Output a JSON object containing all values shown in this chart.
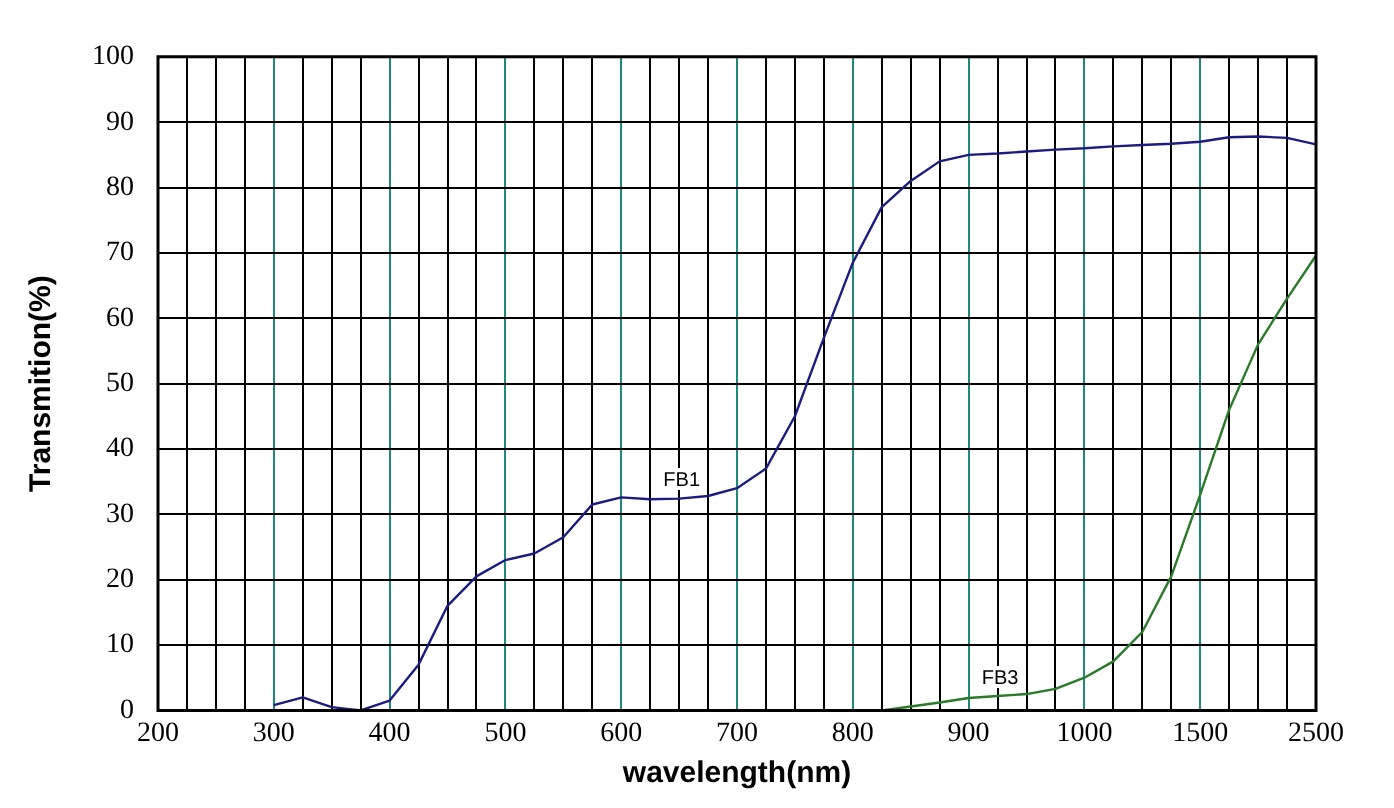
{
  "chart_data": {
    "type": "line",
    "xlabel": "wavelength(nm)",
    "ylabel": "Transmition(%)",
    "categories": [
      "200",
      null,
      null,
      null,
      "300",
      null,
      null,
      null,
      "400",
      null,
      null,
      null,
      "500",
      null,
      null,
      null,
      "600",
      null,
      null,
      null,
      "700",
      null,
      null,
      null,
      "800",
      null,
      null,
      null,
      "900",
      null,
      null,
      null,
      "1000",
      null,
      null,
      null,
      "1500",
      null,
      null,
      null,
      "2500"
    ],
    "ylim": [
      0,
      100
    ],
    "yticks": [
      0,
      10,
      20,
      30,
      40,
      50,
      60,
      70,
      80,
      90,
      100
    ],
    "grid": true,
    "marker": "none",
    "line_style": "solid",
    "series": [
      {
        "name": "FB1",
        "color": "#1c1c80",
        "values": [
          null,
          null,
          null,
          null,
          0.8,
          2,
          0.5,
          0,
          1.5,
          7,
          16,
          20.5,
          23,
          24,
          26.5,
          31.5,
          32.6,
          32.3,
          32.4,
          32.8,
          34,
          37,
          45,
          57,
          68.5,
          77,
          81,
          84,
          85,
          85.2,
          85.5,
          85.8,
          86,
          86.3,
          86.5,
          86.7,
          87,
          87.7,
          87.8,
          87.6,
          86.6
        ]
      },
      {
        "name": "FB3",
        "color": "#2a7a2a",
        "values": [
          null,
          null,
          null,
          null,
          null,
          null,
          null,
          null,
          null,
          null,
          null,
          null,
          null,
          null,
          null,
          null,
          null,
          null,
          null,
          null,
          null,
          null,
          null,
          null,
          null,
          0,
          0.6,
          1.2,
          1.9,
          2.2,
          2.5,
          3.3,
          5,
          7.5,
          12,
          20.5,
          33,
          46,
          56,
          63,
          69.6
        ]
      }
    ]
  }
}
